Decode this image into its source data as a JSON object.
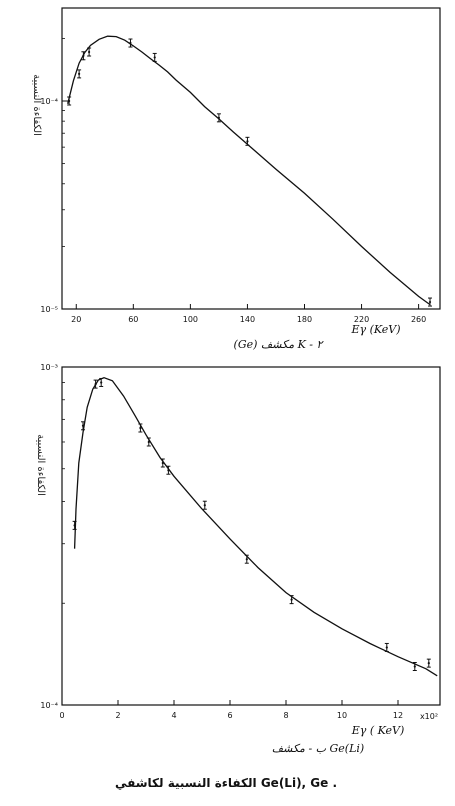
{
  "caption": "الكفاءة النسبية لكاشفي Ge(Li), Ge .",
  "chart_data": [
    {
      "type": "line",
      "panel_label": "(Ge) مكشف K - ٢",
      "xlabel": "Eγ (KeV)",
      "ylabel": "الكفاءة النسبية",
      "xlim": [
        10,
        275
      ],
      "ylog": true,
      "ylim": [
        1e-05,
        0.00028
      ],
      "x_ticks": [
        20,
        60,
        100,
        140,
        180,
        220,
        260
      ],
      "x_tick_labels": [
        "20",
        "60",
        "100",
        "140",
        "180",
        "220",
        "260"
      ],
      "y_ticks": [
        1e-05,
        0.0001
      ],
      "y_tick_labels": [
        "10⁻⁵",
        "10⁻⁴"
      ],
      "curve": {
        "x": [
          14,
          18,
          22,
          26,
          30,
          36,
          42,
          48,
          54,
          60,
          66,
          72,
          78,
          84,
          90,
          100,
          110,
          120,
          130,
          140,
          160,
          180,
          200,
          220,
          240,
          260,
          268
        ],
        "y": [
          9.7e-05,
          0.000125,
          0.000152,
          0.000171,
          0.000185,
          0.000198,
          0.000205,
          0.000204,
          0.000196,
          0.000184,
          0.000172,
          0.00016,
          0.000149,
          0.000138,
          0.000126,
          0.00011,
          9.4e-05,
          8.2e-05,
          7.1e-05,
          6.2e-05,
          4.7e-05,
          3.6e-05,
          2.7e-05,
          2e-05,
          1.5e-05,
          1.15e-05,
          1.05e-05
        ]
      },
      "points": {
        "x": [
          15,
          22,
          25,
          29,
          58,
          75,
          120,
          140,
          268
        ],
        "y": [
          0.0001,
          0.000135,
          0.000165,
          0.000172,
          0.00019,
          0.000162,
          8.3e-05,
          6.4e-05,
          1.08e-05
        ]
      }
    },
    {
      "type": "line",
      "panel_label": "ب - مكشف Ge(Li)",
      "xlabel": "Eγ ( KeV)",
      "x_multiplier": "x10²",
      "ylabel": "الكفاءة النسبية",
      "xlim": [
        0,
        13.5
      ],
      "ylog": true,
      "ylim": [
        0.0001,
        0.001
      ],
      "x_ticks": [
        0,
        2,
        4,
        6,
        8,
        10,
        12
      ],
      "x_tick_labels": [
        "0",
        "2",
        "4",
        "6",
        "8",
        "10",
        "12"
      ],
      "y_ticks": [
        0.0001,
        0.001
      ],
      "y_tick_labels": [
        "10⁻⁴",
        "10⁻³"
      ],
      "curve": {
        "x": [
          0.45,
          0.5,
          0.6,
          0.75,
          0.9,
          1.1,
          1.3,
          1.5,
          1.8,
          2.2,
          2.6,
          3.0,
          3.5,
          4.0,
          5.0,
          6.0,
          7.0,
          8.0,
          9.0,
          10.0,
          11.0,
          12.0,
          13.0,
          13.4
        ],
        "y": [
          0.00029,
          0.00038,
          0.00052,
          0.00064,
          0.00076,
          0.00086,
          0.000915,
          0.00093,
          0.00091,
          0.00082,
          0.00072,
          0.00063,
          0.00054,
          0.000475,
          0.00038,
          0.00031,
          0.000255,
          0.000215,
          0.000188,
          0.000168,
          0.000152,
          0.000139,
          0.000128,
          0.000122
        ]
      },
      "points": {
        "x": [
          0.45,
          0.75,
          1.2,
          1.4,
          2.8,
          3.1,
          3.6,
          3.8,
          5.1,
          6.6,
          8.2,
          11.6,
          12.6,
          13.1
        ],
        "y": [
          0.00034,
          0.00067,
          0.00089,
          0.0009,
          0.00066,
          0.0006,
          0.00052,
          0.000495,
          0.00039,
          0.00027,
          0.000205,
          0.000148,
          0.00013,
          0.000133
        ]
      }
    }
  ]
}
